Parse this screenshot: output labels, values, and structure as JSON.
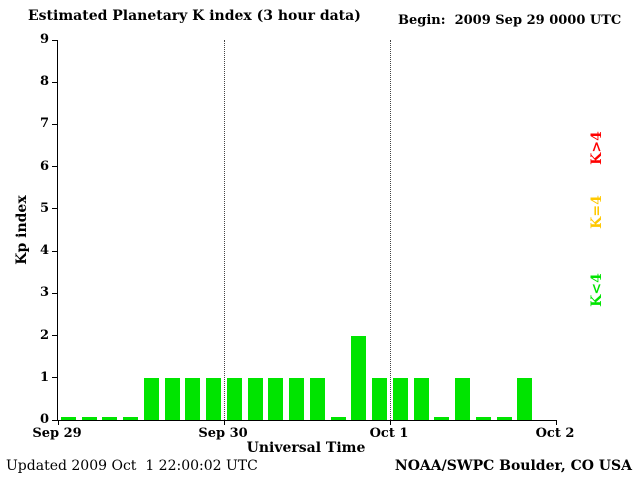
{
  "page": {
    "title": "Estimated Planetary K index (3 hour data)",
    "begin_label": "Begin:  2009 Sep 29 0000 UTC"
  },
  "footer": {
    "updated": "Updated 2009 Oct  1 22:00:02 UTC",
    "source": "NOAA/SWPC Boulder, CO USA"
  },
  "legend": [
    {
      "label": "K>4",
      "color": "#ff0000"
    },
    {
      "label": "K=4",
      "color": "#ffc800"
    },
    {
      "label": "K<4",
      "color": "#00e400"
    }
  ],
  "chart_data": {
    "type": "bar",
    "title": "Estimated Planetary K index (3 hour data)",
    "xlabel": "Universal Time",
    "ylabel": "Kp index",
    "ylim": [
      0,
      9
    ],
    "yticks": [
      0,
      1,
      2,
      3,
      4,
      5,
      6,
      7,
      8,
      9
    ],
    "x_tick_labels": [
      "Sep 29",
      "Sep 30",
      "Oct 1",
      "Oct 2"
    ],
    "x_gridline_days": [
      1,
      2
    ],
    "hours_per_bar": 3,
    "bars_per_day": 8,
    "days_shown": 3,
    "values": [
      0,
      0,
      0,
      0,
      1,
      1,
      1,
      1,
      1,
      1,
      1,
      1,
      1,
      0,
      2,
      1,
      1,
      1,
      0,
      1,
      0,
      0,
      1,
      null
    ],
    "bar_color_rules": {
      "below_4": "#00e400",
      "equal_4": "#ffc800",
      "above_4": "#ff0000"
    },
    "grid": "vertical-dotted-day-boundaries",
    "legend_position": "right-rotated"
  }
}
